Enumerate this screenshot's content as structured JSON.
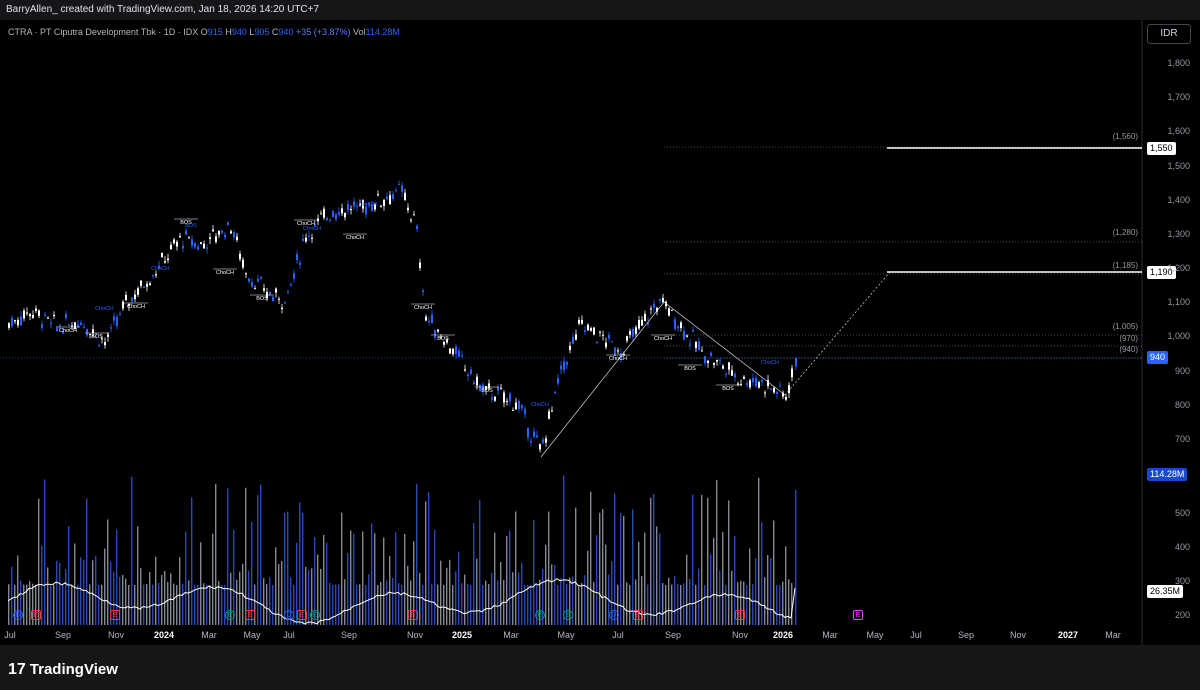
{
  "header": {
    "author_line": "BarryAllen_ created with TradingView.com, Jan 18, 2026 14:20 UTC+7"
  },
  "symbol": {
    "title": "CTRA · PT Ciputra Development Tbk · 1D · IDX",
    "o_label": "O",
    "o": "915",
    "h_label": "H",
    "h": "940",
    "l_label": "L",
    "l": "905",
    "c_label": "C",
    "c": "940",
    "change": "+35 (+3.87%)",
    "vol_label": "Vol",
    "vol": "114.28M"
  },
  "currency_button": "IDR",
  "price_axis": [
    "1,800",
    "1,700",
    "1,600",
    "1,500",
    "1,400",
    "1,300",
    "1,200",
    "1,100",
    "1,000",
    "900",
    "800",
    "700"
  ],
  "volume_axis": [
    "500",
    "400",
    "300",
    "200"
  ],
  "price_tags": {
    "target_high": "1,550",
    "target_mid": "1,190",
    "last": "940",
    "volume": "114.28M",
    "volume_ma": "26.35M"
  },
  "fib_levels": [
    "(1,560)",
    "(1,280)",
    "(1,185)",
    "(1,005)",
    "(970)",
    "(940)"
  ],
  "structure_labels": {
    "bos": "BOS",
    "choch": "ChoCH"
  },
  "time_axis": [
    "Jul",
    "Sep",
    "Nov",
    "2024",
    "Mar",
    "May",
    "Jul",
    "Sep",
    "Nov",
    "2025",
    "Mar",
    "May",
    "Jul",
    "Sep",
    "Nov",
    "2026",
    "Mar",
    "May",
    "Jul",
    "Sep",
    "Nov",
    "2027",
    "Mar"
  ],
  "events": {
    "dividend": "D",
    "earnings": "E"
  },
  "colors": {
    "up": "#2962ff",
    "down": "#ffffff",
    "background": "#000000",
    "volume_ma": "#ffffff"
  },
  "footer": {
    "logo_mark": "17",
    "logo_text": "TradingView"
  },
  "chart_data": {
    "type": "candlestick",
    "symbol": "CTRA",
    "interval": "1D",
    "exchange": "IDX",
    "price_ylim": [
      640,
      1850
    ],
    "price_ticks": [
      700,
      800,
      900,
      1000,
      1100,
      1200,
      1300,
      1400,
      1500,
      1600,
      1700,
      1800
    ],
    "volume_ticks_millions": [
      200,
      300,
      400,
      500
    ],
    "grid": false,
    "last_close": 940,
    "close_path": [
      [
        "2023-07",
        1040
      ],
      [
        "2023-07",
        1080
      ],
      [
        "2023-08",
        1030
      ],
      [
        "2023-09",
        1050
      ],
      [
        "2023-10",
        985
      ],
      [
        "2023-11",
        1100
      ],
      [
        "2023-12",
        1180
      ],
      [
        "2024-01",
        1290
      ],
      [
        "2024-02",
        1270
      ],
      [
        "2024-03",
        1330
      ],
      [
        "2024-04",
        1190
      ],
      [
        "2024-05",
        1130
      ],
      [
        "2024-06",
        1110
      ],
      [
        "2024-07",
        1300
      ],
      [
        "2024-08",
        1370
      ],
      [
        "2024-09",
        1380
      ],
      [
        "2024-10",
        1430
      ],
      [
        "2024-11",
        1330
      ],
      [
        "2024-12",
        1060
      ],
      [
        "2025-01",
        990
      ],
      [
        "2025-02",
        850
      ],
      [
        "2025-03",
        810
      ],
      [
        "2025-04",
        665
      ],
      [
        "2025-05",
        900
      ],
      [
        "2025-06",
        1040
      ],
      [
        "2025-07",
        960
      ],
      [
        "2025-08",
        1110
      ],
      [
        "2025-09",
        960
      ],
      [
        "2025-10",
        880
      ],
      [
        "2025-11",
        870
      ],
      [
        "2025-12",
        830
      ],
      [
        "2026-01",
        940
      ]
    ],
    "projection": [
      [
        "2025-04",
        665
      ],
      [
        "2025-08",
        1110
      ],
      [
        "2026-01",
        830
      ],
      [
        "2026-05",
        1190
      ]
    ],
    "horizontal_levels": [
      1560,
      1280,
      1185,
      1005,
      970,
      940
    ],
    "target_lines": [
      1550,
      1190
    ]
  }
}
